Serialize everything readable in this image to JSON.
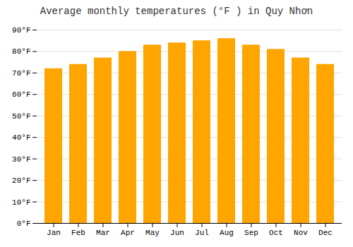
{
  "chart_data": {
    "type": "bar",
    "title": "Average monthly temperatures (°F ) in Quy Nhơn",
    "categories": [
      "Jan",
      "Feb",
      "Mar",
      "Apr",
      "May",
      "Jun",
      "Jul",
      "Aug",
      "Sep",
      "Oct",
      "Nov",
      "Dec"
    ],
    "values": [
      72,
      74,
      77,
      80,
      83,
      84,
      85,
      86,
      83,
      81,
      77,
      74
    ],
    "color": "#FFA500",
    "ylim": [
      0,
      90
    ],
    "yticks": [
      {
        "value": 0,
        "label": "0°F"
      },
      {
        "value": 10,
        "label": "10°F"
      },
      {
        "value": 20,
        "label": "20°F"
      },
      {
        "value": 30,
        "label": "30°F"
      },
      {
        "value": 40,
        "label": "40°F"
      },
      {
        "value": 50,
        "label": "50°F"
      },
      {
        "value": 60,
        "label": "60°F"
      },
      {
        "value": 70,
        "label": "70°F"
      },
      {
        "value": 80,
        "label": "80°F"
      },
      {
        "value": 90,
        "label": "90°F"
      }
    ],
    "grid": true
  }
}
